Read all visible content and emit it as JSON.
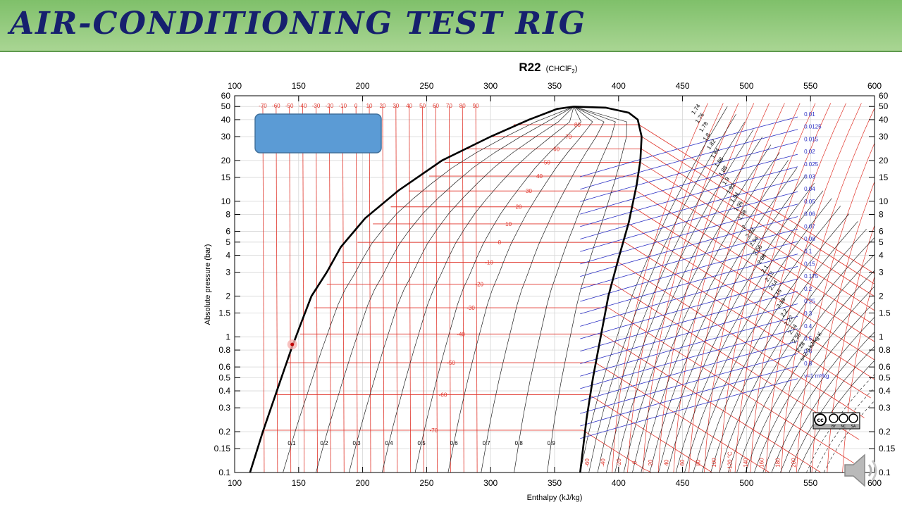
{
  "slide": {
    "title": "Air-Conditioning Test Rig"
  },
  "colors": {
    "title_bar": "#8cc779",
    "title_text": "#16206e",
    "isotherm": "#e0352b",
    "dome": "#000000",
    "isentrope": "#111111",
    "isochore": "#2b2fc4",
    "box": "#5b9bd5"
  },
  "chart_data": {
    "type": "line",
    "title": "R22",
    "subtitle": "(CHClF",
    "subtitle_sub": "2",
    "subtitle_end": ")",
    "xlabel": "Enthalpy (kJ/kg)",
    "ylabel": "Absolute pressure (bar)",
    "xlim": [
      100,
      600
    ],
    "ylim": [
      0.1,
      60
    ],
    "yscale": "log",
    "grid": true,
    "x_ticks": [
      "100",
      "150",
      "200",
      "250",
      "300",
      "350",
      "400",
      "450",
      "500",
      "550",
      "600"
    ],
    "y_ticks": [
      {
        "v": 0.1,
        "label": "0.1"
      },
      {
        "v": 0.15,
        "label": "0.15"
      },
      {
        "v": 0.2,
        "label": "0.2"
      },
      {
        "v": 0.3,
        "label": "0.3"
      },
      {
        "v": 0.4,
        "label": "0.4"
      },
      {
        "v": 0.5,
        "label": "0.5"
      },
      {
        "v": 0.6,
        "label": "0.6"
      },
      {
        "v": 0.8,
        "label": "0.8"
      },
      {
        "v": 1,
        "label": "1"
      },
      {
        "v": 1.5,
        "label": "1.5"
      },
      {
        "v": 2,
        "label": "2"
      },
      {
        "v": 3,
        "label": "3"
      },
      {
        "v": 4,
        "label": "4"
      },
      {
        "v": 5,
        "label": "5"
      },
      {
        "v": 6,
        "label": "6"
      },
      {
        "v": 8,
        "label": "8"
      },
      {
        "v": 10,
        "label": "10"
      },
      {
        "v": 15,
        "label": "15"
      },
      {
        "v": 20,
        "label": "20"
      },
      {
        "v": 30,
        "label": "30"
      },
      {
        "v": 40,
        "label": "40"
      },
      {
        "v": 50,
        "label": "50"
      },
      {
        "v": 60,
        "label": "60"
      }
    ],
    "saturation_liquid": [
      [
        112,
        0.1
      ],
      [
        122,
        0.2
      ],
      [
        133,
        0.4
      ],
      [
        144,
        0.8
      ],
      [
        151,
        1.2
      ],
      [
        160,
        2
      ],
      [
        172,
        3
      ],
      [
        183,
        4.6
      ],
      [
        202,
        7.5
      ],
      [
        228,
        12
      ],
      [
        262,
        20
      ],
      [
        300,
        30
      ],
      [
        330,
        40
      ],
      [
        352,
        48
      ],
      [
        365,
        49.9
      ]
    ],
    "saturation_vapor": [
      [
        365,
        49.9
      ],
      [
        390,
        49
      ],
      [
        408,
        45
      ],
      [
        415,
        40
      ],
      [
        418,
        30
      ],
      [
        417,
        20
      ],
      [
        414,
        13
      ],
      [
        408,
        7
      ],
      [
        400,
        3.8
      ],
      [
        392,
        2
      ],
      [
        386,
        1
      ],
      [
        380,
        0.5
      ],
      [
        375,
        0.25
      ],
      [
        370,
        0.1
      ]
    ],
    "isotherm_labels_top": [
      "-70",
      "-60",
      "-50",
      "-40",
      "-30",
      "-20",
      "-10",
      "0",
      "10",
      "20",
      "30",
      "40",
      "50",
      "60",
      "70",
      "80",
      "90"
    ],
    "isotherms_in_dome": [
      {
        "label": "-70",
        "p": 0.205,
        "hf": 122,
        "hg": 372
      },
      {
        "label": "-60",
        "p": 0.375,
        "hf": 132,
        "hg": 377
      },
      {
        "label": "-50",
        "p": 0.645,
        "hf": 140,
        "hg": 382
      },
      {
        "label": "-40",
        "p": 1.05,
        "hf": 151,
        "hg": 387
      },
      {
        "label": "-30",
        "p": 1.64,
        "hf": 162,
        "hg": 392
      },
      {
        "label": "-20",
        "p": 2.45,
        "hf": 172,
        "hg": 396
      },
      {
        "label": "-10",
        "p": 3.55,
        "hf": 184,
        "hg": 400
      },
      {
        "label": "0",
        "p": 4.98,
        "hf": 196,
        "hg": 405
      },
      {
        "label": "10",
        "p": 6.81,
        "hf": 208,
        "hg": 408
      },
      {
        "label": "20",
        "p": 9.1,
        "hf": 222,
        "hg": 411
      },
      {
        "label": "30",
        "p": 11.92,
        "hf": 236,
        "hg": 414
      },
      {
        "label": "40",
        "p": 15.34,
        "hf": 252,
        "hg": 416
      },
      {
        "label": "50",
        "p": 19.4,
        "hf": 264,
        "hg": 417
      },
      {
        "label": "60",
        "p": 24.3,
        "hf": 279,
        "hg": 418
      },
      {
        "label": "70",
        "p": 30.0,
        "hf": 300,
        "hg": 418
      },
      {
        "label": "80",
        "p": 36.7,
        "hf": 318,
        "hg": 416
      }
    ],
    "quality_labels": [
      "0.1",
      "0.2",
      "0.3",
      "0.4",
      "0.5",
      "0.6",
      "0.7",
      "0.8",
      "0.9"
    ],
    "entropy_labels": [
      "1.74",
      "1.76",
      "1.78",
      "1.8",
      "1.82",
      "1.84",
      "1.86",
      "1.88",
      "1.9",
      "1.92",
      "1.94",
      "1.96",
      "1.98",
      "2",
      "2.02",
      "2.04",
      "2.06",
      "2.08",
      "2.1",
      "2.12",
      "2.14",
      "2.16",
      "2.18",
      "2.2",
      "2.22",
      "2.24",
      "2.26",
      "2.28",
      "s=2.3 kJ/kg K"
    ],
    "volume_labels": [
      "0.01",
      "0.0125",
      "0.015",
      "0.02",
      "0.025",
      "0.03",
      "0.04",
      "0.05",
      "0.06",
      "0.07",
      "0.08",
      "0.1",
      "0.15",
      "0.175",
      "0.2",
      "0.25",
      "0.3",
      "0.4",
      "0.5",
      "0.6",
      "0.8",
      "v=1 m³/kg"
    ],
    "superheat_labels_bottom": [
      "-60",
      "-40",
      "-20",
      "0",
      "20",
      "40",
      "60",
      "80",
      "100",
      "t=120 °C",
      "140",
      "160",
      "180",
      "200"
    ],
    "marker": {
      "h": 145,
      "p": 0.88
    }
  },
  "license_badge": {
    "cc": "cc",
    "parts": [
      "BY",
      "NC",
      "SA"
    ]
  }
}
